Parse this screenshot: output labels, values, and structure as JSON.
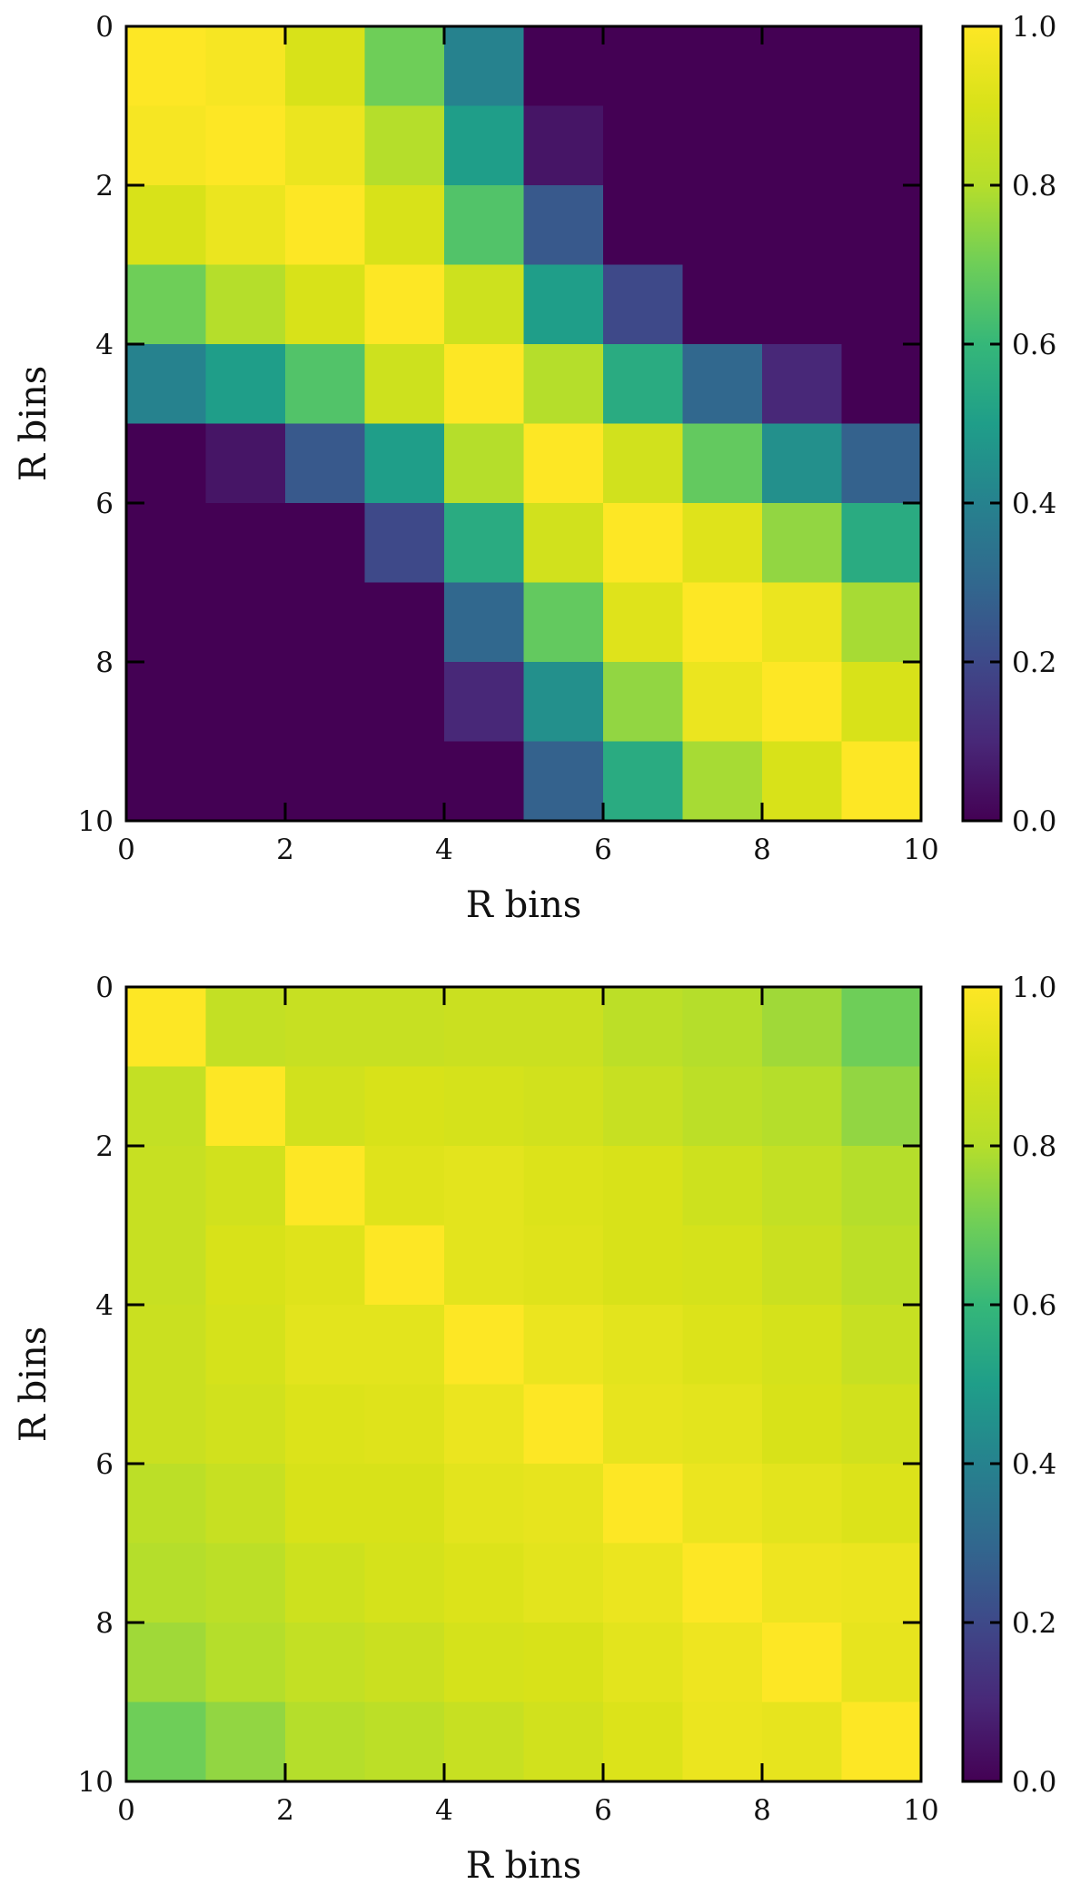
{
  "chart_data": [
    {
      "type": "heatmap",
      "xlabel": "R bins",
      "ylabel": "R bins",
      "xlim": [
        0,
        10
      ],
      "ylim": [
        0,
        10
      ],
      "y_inverted": true,
      "xticks": [
        0,
        2,
        4,
        6,
        8,
        10
      ],
      "yticks": [
        0,
        2,
        4,
        6,
        8,
        10
      ],
      "colormap": "viridis",
      "colorbar": {
        "range": [
          0.0,
          1.0
        ],
        "ticks": [
          "0.0",
          "0.2",
          "0.4",
          "0.6",
          "0.8",
          "1.0"
        ]
      },
      "matrix": [
        [
          1.0,
          0.98,
          0.9,
          0.7,
          0.4,
          0.0,
          0.0,
          0.0,
          0.0,
          0.0
        ],
        [
          0.98,
          1.0,
          0.95,
          0.8,
          0.5,
          0.05,
          0.0,
          0.0,
          0.0,
          0.0
        ],
        [
          0.9,
          0.95,
          1.0,
          0.9,
          0.65,
          0.25,
          0.0,
          0.0,
          0.0,
          0.0
        ],
        [
          0.7,
          0.8,
          0.9,
          1.0,
          0.87,
          0.5,
          0.2,
          0.0,
          0.0,
          0.0
        ],
        [
          0.4,
          0.5,
          0.65,
          0.87,
          1.0,
          0.8,
          0.55,
          0.3,
          0.1,
          0.0
        ],
        [
          0.0,
          0.05,
          0.25,
          0.5,
          0.8,
          1.0,
          0.88,
          0.68,
          0.45,
          0.28
        ],
        [
          0.0,
          0.0,
          0.0,
          0.2,
          0.55,
          0.88,
          1.0,
          0.92,
          0.75,
          0.55
        ],
        [
          0.0,
          0.0,
          0.0,
          0.0,
          0.3,
          0.68,
          0.92,
          1.0,
          0.95,
          0.78
        ],
        [
          0.0,
          0.0,
          0.0,
          0.0,
          0.1,
          0.45,
          0.75,
          0.95,
          1.0,
          0.9
        ],
        [
          0.0,
          0.0,
          0.0,
          0.0,
          0.0,
          0.28,
          0.55,
          0.78,
          0.9,
          1.0
        ]
      ]
    },
    {
      "type": "heatmap",
      "xlabel": "R bins",
      "ylabel": "R bins",
      "xlim": [
        0,
        10
      ],
      "ylim": [
        0,
        10
      ],
      "y_inverted": true,
      "xticks": [
        0,
        2,
        4,
        6,
        8,
        10
      ],
      "yticks": [
        0,
        2,
        4,
        6,
        8,
        10
      ],
      "colormap": "viridis",
      "colorbar": {
        "range": [
          0.0,
          1.0
        ],
        "ticks": [
          "0.0",
          "0.2",
          "0.4",
          "0.6",
          "0.8",
          "1.0"
        ]
      },
      "matrix": [
        [
          1.0,
          0.84,
          0.85,
          0.85,
          0.86,
          0.86,
          0.82,
          0.8,
          0.77,
          0.7
        ],
        [
          0.84,
          1.0,
          0.88,
          0.9,
          0.89,
          0.88,
          0.85,
          0.82,
          0.8,
          0.75
        ],
        [
          0.85,
          0.88,
          1.0,
          0.92,
          0.93,
          0.91,
          0.9,
          0.87,
          0.84,
          0.8
        ],
        [
          0.85,
          0.9,
          0.92,
          1.0,
          0.93,
          0.92,
          0.9,
          0.89,
          0.86,
          0.82
        ],
        [
          0.86,
          0.89,
          0.93,
          0.93,
          1.0,
          0.95,
          0.93,
          0.91,
          0.89,
          0.85
        ],
        [
          0.86,
          0.88,
          0.91,
          0.92,
          0.95,
          1.0,
          0.94,
          0.93,
          0.9,
          0.88
        ],
        [
          0.82,
          0.85,
          0.9,
          0.9,
          0.93,
          0.94,
          1.0,
          0.95,
          0.93,
          0.91
        ],
        [
          0.8,
          0.82,
          0.87,
          0.89,
          0.91,
          0.93,
          0.95,
          1.0,
          0.96,
          0.95
        ],
        [
          0.77,
          0.8,
          0.84,
          0.86,
          0.89,
          0.9,
          0.93,
          0.96,
          1.0,
          0.94
        ],
        [
          0.7,
          0.75,
          0.8,
          0.82,
          0.85,
          0.88,
          0.91,
          0.95,
          0.94,
          1.0
        ]
      ]
    }
  ]
}
